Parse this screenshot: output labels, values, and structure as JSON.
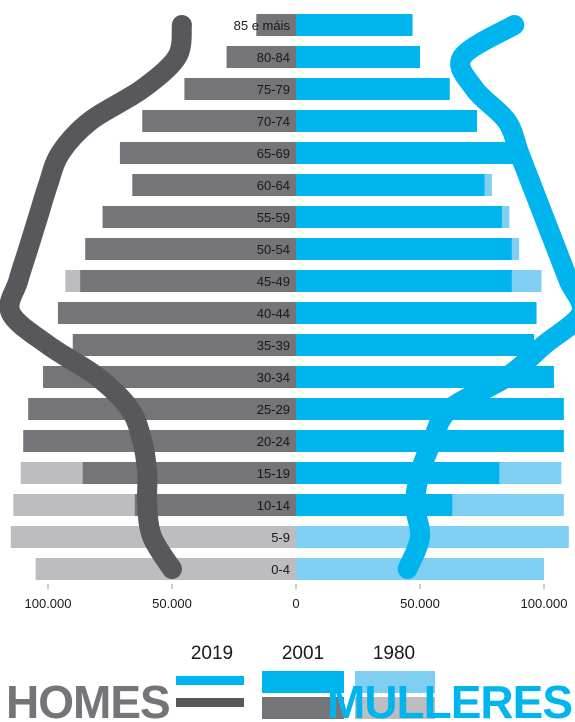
{
  "chart_data": {
    "type": "bar",
    "subtype": "population-pyramid",
    "age_groups": [
      "85 e máis",
      "80-84",
      "75-79",
      "70-74",
      "65-69",
      "60-64",
      "55-59",
      "50-54",
      "45-49",
      "40-44",
      "35-39",
      "30-34",
      "25-29",
      "20-24",
      "15-19",
      "10-14",
      "5-9",
      "0-4"
    ],
    "x_ticks": [
      "100.000",
      "50.000",
      "0",
      "50.000",
      "100.000"
    ],
    "x_range": [
      -100000,
      100000
    ],
    "series": [
      {
        "name": "1980",
        "sex": "homes",
        "values": [
          11000,
          12000,
          21000,
          28000,
          36000,
          43000,
          55000,
          58000,
          93000,
          73000,
          90000,
          83000,
          83000,
          99000,
          111000,
          114000,
          115000,
          105000
        ]
      },
      {
        "name": "1980",
        "sex": "mulleres",
        "values": [
          19000,
          30000,
          48000,
          64000,
          71000,
          79000,
          86000,
          90000,
          99000,
          76000,
          90000,
          89000,
          91000,
          104000,
          107000,
          108000,
          110000,
          100000
        ]
      },
      {
        "name": "2001",
        "sex": "homes",
        "values": [
          16000,
          28000,
          45000,
          62000,
          71000,
          66000,
          78000,
          85000,
          87000,
          96000,
          90000,
          102000,
          108000,
          110000,
          86000,
          65000,
          0,
          0
        ]
      },
      {
        "name": "2001",
        "sex": "mulleres",
        "values": [
          47000,
          50000,
          62000,
          73000,
          91000,
          76000,
          83000,
          87000,
          87000,
          97000,
          96000,
          104000,
          108000,
          108000,
          82000,
          63000,
          0,
          0
        ]
      }
    ],
    "curves_2019": {
      "homes": [
        46000,
        48000,
        62000,
        83000,
        95000,
        100000,
        104000,
        108000,
        112000,
        115000,
        100000,
        80000,
        67000,
        62000,
        60000,
        60000,
        58000,
        50000
      ],
      "mulleres": [
        88000,
        67000,
        72000,
        85000,
        90000,
        95000,
        100000,
        105000,
        110000,
        115000,
        100000,
        85000,
        62000,
        55000,
        50000,
        48000,
        50000,
        45000
      ]
    },
    "legend": {
      "years": [
        "2019",
        "2001",
        "1980"
      ],
      "left_label": "HOMES",
      "right_label": "MULLERES"
    },
    "colors": {
      "homes_1980": "#bdbdc1",
      "homes_2001": "#747479",
      "homes_2019": "#58585c",
      "mulleres_1980": "#7fcff3",
      "mulleres_2001": "#00b4ee",
      "mulleres_2019": "#00b4ee"
    }
  }
}
